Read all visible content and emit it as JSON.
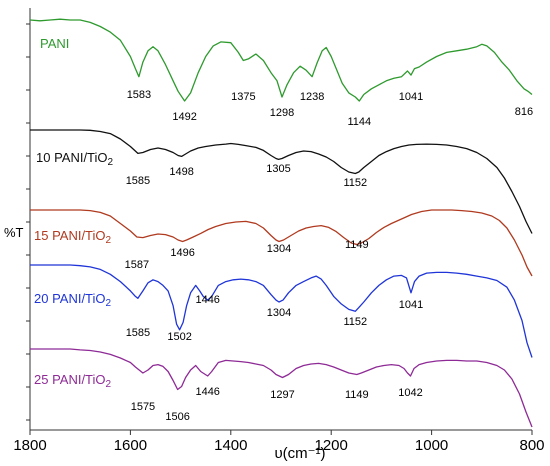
{
  "chart_data": {
    "type": "line",
    "title": "",
    "xlabel": "υ(cm⁻¹)",
    "ylabel": "%T",
    "x_reversed": true,
    "xlim": [
      1800,
      800
    ],
    "xticks": [
      1800,
      1600,
      1400,
      1200,
      1000,
      800
    ],
    "yticks_unlabeled": true,
    "grid": false,
    "legend": "labels placed beside each curve",
    "series": [
      {
        "name": "PANI",
        "label_main": "PANI",
        "label_sub": "",
        "color": "#2e9a2e",
        "x": [
          1800,
          1780,
          1760,
          1740,
          1720,
          1700,
          1680,
          1660,
          1640,
          1620,
          1600,
          1590,
          1583,
          1575,
          1565,
          1555,
          1545,
          1530,
          1515,
          1505,
          1492,
          1480,
          1465,
          1450,
          1435,
          1420,
          1400,
          1385,
          1375,
          1365,
          1350,
          1335,
          1320,
          1308,
          1298,
          1288,
          1275,
          1262,
          1250,
          1238,
          1228,
          1218,
          1210,
          1200,
          1190,
          1178,
          1165,
          1152,
          1144,
          1135,
          1120,
          1105,
          1090,
          1075,
          1060,
          1048,
          1041,
          1034,
          1025,
          1010,
          990,
          970,
          950,
          930,
          910,
          900,
          890,
          875,
          860,
          845,
          830,
          816,
          808,
          800
        ],
        "y": [
          0.0,
          0.01,
          0.0,
          -0.01,
          0.0,
          0.0,
          0.03,
          0.08,
          0.15,
          0.25,
          0.45,
          0.6,
          0.7,
          0.52,
          0.38,
          0.33,
          0.38,
          0.55,
          0.75,
          0.88,
          1.0,
          0.9,
          0.65,
          0.45,
          0.32,
          0.27,
          0.28,
          0.4,
          0.5,
          0.48,
          0.42,
          0.5,
          0.65,
          0.75,
          0.95,
          0.8,
          0.65,
          0.57,
          0.62,
          0.7,
          0.53,
          0.38,
          0.34,
          0.45,
          0.6,
          0.78,
          0.9,
          0.95,
          1.0,
          0.92,
          0.85,
          0.8,
          0.75,
          0.72,
          0.7,
          0.63,
          0.68,
          0.6,
          0.58,
          0.52,
          0.45,
          0.4,
          0.38,
          0.36,
          0.33,
          0.3,
          0.32,
          0.4,
          0.52,
          0.62,
          0.75,
          0.85,
          0.88,
          0.92
        ]
      },
      {
        "name": "10 PANI/TiO2",
        "label_main": "10 PANI/TiO",
        "label_sub": "2",
        "color": "#111111",
        "x": [
          1800,
          1780,
          1760,
          1740,
          1720,
          1700,
          1680,
          1660,
          1640,
          1620,
          1600,
          1585,
          1575,
          1560,
          1545,
          1530,
          1515,
          1505,
          1498,
          1490,
          1480,
          1465,
          1450,
          1430,
          1410,
          1400,
          1385,
          1370,
          1350,
          1335,
          1320,
          1310,
          1305,
          1298,
          1285,
          1270,
          1255,
          1240,
          1225,
          1210,
          1195,
          1180,
          1165,
          1152,
          1145,
          1135,
          1120,
          1105,
          1090,
          1075,
          1060,
          1045,
          1030,
          1010,
          990,
          970,
          950,
          930,
          910,
          890,
          870,
          855,
          840,
          825,
          812,
          800
        ],
        "y": [
          0.0,
          0.0,
          0.0,
          0.0,
          0.0,
          0.0,
          0.01,
          0.05,
          0.12,
          0.3,
          0.55,
          0.78,
          0.75,
          0.65,
          0.6,
          0.65,
          0.75,
          0.85,
          0.88,
          0.8,
          0.7,
          0.6,
          0.55,
          0.5,
          0.47,
          0.45,
          0.48,
          0.52,
          0.58,
          0.68,
          0.85,
          0.95,
          0.98,
          0.95,
          0.85,
          0.75,
          0.7,
          0.72,
          0.8,
          0.9,
          1.05,
          1.25,
          1.4,
          1.45,
          1.4,
          1.25,
          1.05,
          0.85,
          0.72,
          0.62,
          0.55,
          0.5,
          0.48,
          0.47,
          0.48,
          0.5,
          0.55,
          0.62,
          0.75,
          0.95,
          1.25,
          1.6,
          2.05,
          2.55,
          3.05,
          3.45
        ]
      },
      {
        "name": "15 PANI/TiO2",
        "label_main": "15 PANI/TiO",
        "label_sub": "2",
        "color": "#b03a1f",
        "x": [
          1800,
          1780,
          1760,
          1740,
          1720,
          1700,
          1680,
          1660,
          1640,
          1620,
          1600,
          1587,
          1575,
          1560,
          1545,
          1530,
          1515,
          1505,
          1496,
          1488,
          1475,
          1460,
          1445,
          1430,
          1410,
          1390,
          1370,
          1350,
          1335,
          1320,
          1310,
          1304,
          1295,
          1280,
          1265,
          1250,
          1235,
          1220,
          1205,
          1190,
          1175,
          1160,
          1149,
          1140,
          1125,
          1110,
          1095,
          1080,
          1060,
          1040,
          1020,
          1000,
          980,
          960,
          940,
          920,
          900,
          880,
          865,
          850,
          835,
          820,
          810,
          800
        ],
        "y": [
          0.0,
          0.0,
          0.0,
          0.0,
          0.0,
          0.0,
          0.02,
          0.08,
          0.2,
          0.45,
          0.7,
          0.9,
          0.92,
          0.85,
          0.8,
          0.82,
          0.9,
          1.0,
          1.05,
          1.0,
          0.9,
          0.78,
          0.65,
          0.55,
          0.45,
          0.4,
          0.38,
          0.45,
          0.6,
          0.85,
          1.0,
          1.05,
          1.0,
          0.85,
          0.7,
          0.6,
          0.55,
          0.52,
          0.58,
          0.72,
          0.92,
          1.1,
          1.15,
          1.1,
          0.95,
          0.75,
          0.58,
          0.45,
          0.3,
          0.15,
          0.05,
          0.0,
          0.0,
          0.0,
          0.02,
          0.05,
          0.1,
          0.2,
          0.35,
          0.6,
          1.0,
          1.5,
          1.9,
          2.2
        ]
      },
      {
        "name": "20 PANI/TiO2",
        "label_main": "20 PANI/TiO",
        "label_sub": "2",
        "color": "#1f35d8",
        "x": [
          1800,
          1780,
          1760,
          1740,
          1720,
          1700,
          1680,
          1660,
          1640,
          1620,
          1600,
          1590,
          1585,
          1575,
          1565,
          1555,
          1545,
          1535,
          1525,
          1515,
          1508,
          1502,
          1495,
          1488,
          1480,
          1470,
          1462,
          1455,
          1446,
          1438,
          1425,
          1410,
          1395,
          1380,
          1365,
          1350,
          1335,
          1320,
          1310,
          1304,
          1296,
          1285,
          1270,
          1255,
          1240,
          1230,
          1220,
          1210,
          1195,
          1180,
          1165,
          1152,
          1145,
          1135,
          1120,
          1105,
          1090,
          1075,
          1060,
          1050,
          1041,
          1034,
          1025,
          1010,
          990,
          970,
          950,
          930,
          910,
          890,
          870,
          850,
          835,
          820,
          810,
          800
        ],
        "y": [
          0.0,
          0.0,
          0.0,
          0.0,
          0.0,
          0.02,
          0.05,
          0.12,
          0.25,
          0.45,
          0.7,
          0.85,
          0.9,
          0.7,
          0.48,
          0.4,
          0.45,
          0.55,
          0.7,
          1.1,
          1.6,
          1.75,
          1.55,
          1.1,
          0.75,
          0.55,
          0.7,
          0.85,
          0.95,
          0.85,
          0.55,
          0.45,
          0.4,
          0.38,
          0.4,
          0.45,
          0.55,
          0.8,
          0.95,
          1.0,
          0.95,
          0.75,
          0.55,
          0.45,
          0.35,
          0.3,
          0.38,
          0.55,
          0.85,
          1.05,
          1.2,
          1.25,
          1.15,
          1.0,
          0.75,
          0.55,
          0.4,
          0.3,
          0.28,
          0.35,
          0.75,
          0.45,
          0.3,
          0.22,
          0.2,
          0.2,
          0.22,
          0.25,
          0.3,
          0.35,
          0.42,
          0.6,
          0.95,
          1.5,
          2.1,
          2.5
        ]
      },
      {
        "name": "25 PANI/TiO2",
        "label_main": "25 PANI/TiO",
        "label_sub": "2",
        "color": "#8e2a96",
        "x": [
          1800,
          1780,
          1760,
          1740,
          1720,
          1700,
          1680,
          1660,
          1640,
          1620,
          1600,
          1590,
          1575,
          1565,
          1555,
          1545,
          1535,
          1525,
          1515,
          1506,
          1498,
          1490,
          1480,
          1470,
          1460,
          1446,
          1438,
          1425,
          1410,
          1395,
          1380,
          1365,
          1350,
          1335,
          1320,
          1310,
          1297,
          1285,
          1270,
          1255,
          1240,
          1225,
          1210,
          1195,
          1180,
          1165,
          1149,
          1140,
          1125,
          1110,
          1095,
          1080,
          1065,
          1055,
          1048,
          1042,
          1035,
          1025,
          1010,
          990,
          970,
          950,
          930,
          910,
          890,
          870,
          855,
          840,
          825,
          812,
          800
        ],
        "y": [
          0.0,
          0.0,
          0.0,
          0.0,
          0.0,
          0.03,
          0.05,
          0.1,
          0.18,
          0.3,
          0.45,
          0.6,
          0.8,
          0.7,
          0.55,
          0.52,
          0.58,
          0.75,
          1.05,
          1.35,
          1.25,
          0.95,
          0.7,
          0.55,
          0.75,
          0.9,
          0.75,
          0.45,
          0.38,
          0.4,
          0.42,
          0.45,
          0.5,
          0.55,
          0.7,
          0.85,
          0.95,
          0.85,
          0.65,
          0.55,
          0.5,
          0.48,
          0.52,
          0.6,
          0.7,
          0.8,
          0.85,
          0.8,
          0.7,
          0.6,
          0.55,
          0.52,
          0.55,
          0.65,
          0.8,
          0.9,
          0.65,
          0.52,
          0.45,
          0.4,
          0.38,
          0.38,
          0.4,
          0.4,
          0.45,
          0.55,
          0.7,
          1.0,
          1.5,
          2.1,
          2.6
        ]
      }
    ],
    "peak_labels": [
      [
        "1583",
        "1492",
        "1375",
        "1298",
        "1238",
        "1144",
        "1041",
        "816"
      ],
      [
        "1585",
        "1498",
        "1305",
        "1152"
      ],
      [
        "1587",
        "1496",
        "1304",
        "1149"
      ],
      [
        "1585",
        "1502",
        "1446",
        "1304",
        "1152",
        "1041"
      ],
      [
        "1575",
        "1506",
        "1446",
        "1297",
        "1149",
        "1042"
      ]
    ]
  }
}
